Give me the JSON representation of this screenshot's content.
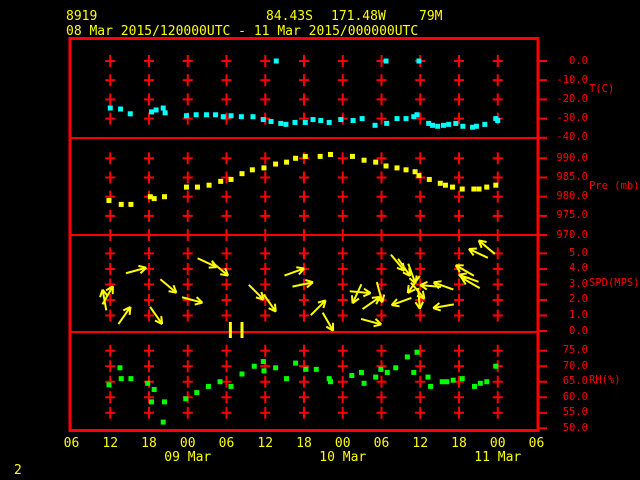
{
  "header": {
    "station_id": "8919",
    "latitude": "84.43S",
    "longitude": "171.48W",
    "elevation": "79M",
    "time_range": "08 Mar 2015/120000UTC - 11 Mar 2015/000000UTC"
  },
  "page_number": "2",
  "colors": {
    "background": "#000000",
    "grid": "#ff0000",
    "frame": "#ff0000",
    "axis_text": "#ff0000",
    "text_primary": "#ffff00",
    "temperature": "#00ffff",
    "pressure": "#ffff00",
    "wind": "#ffff00",
    "humidity": "#00ff00"
  },
  "chart_data": {
    "type": "scatter",
    "description": "Four stacked meteorological time-series panels: temperature, station pressure, wind vectors, relative humidity",
    "x_axis": {
      "span_hours": 72,
      "tick_step_hours": 6,
      "tick_labels": [
        "06",
        "12",
        "18",
        "00",
        "06",
        "12",
        "18",
        "00",
        "06",
        "12",
        "18",
        "00",
        "06"
      ],
      "date_labels": [
        {
          "label": "09 Mar",
          "h": 18
        },
        {
          "label": "10 Mar",
          "h": 42
        },
        {
          "label": "11 Mar",
          "h": 66
        }
      ]
    },
    "panels": [
      {
        "id": "temperature",
        "axis_label": "T(C)",
        "unit": "C",
        "color": "#00ffff",
        "yticks": [
          0,
          -10,
          -20,
          -30,
          -40
        ],
        "grid_rows": [
          0,
          -10,
          -20,
          -30
        ],
        "points": [
          [
            6,
            -24.5
          ],
          [
            7.6,
            -25
          ],
          [
            9.1,
            -27.5
          ],
          [
            12.4,
            -26.5
          ],
          [
            13.1,
            -25.5
          ],
          [
            14.2,
            -24.5
          ],
          [
            14.5,
            -27
          ],
          [
            17.8,
            -28.5
          ],
          [
            19.3,
            -28
          ],
          [
            20.9,
            -28
          ],
          [
            22.3,
            -28
          ],
          [
            23.5,
            -29
          ],
          [
            24.7,
            -28.5
          ],
          [
            26.3,
            -29
          ],
          [
            28.1,
            -29
          ],
          [
            29.7,
            -30.5
          ],
          [
            30.9,
            -31.5
          ],
          [
            31.7,
            0
          ],
          [
            32.4,
            -32.5
          ],
          [
            33.2,
            -33
          ],
          [
            34.6,
            -32
          ],
          [
            36.2,
            -32
          ],
          [
            37.4,
            -30.5
          ],
          [
            38.6,
            -31
          ],
          [
            39.9,
            -32
          ],
          [
            41.7,
            -30.5
          ],
          [
            43.6,
            -31
          ],
          [
            45,
            -30
          ],
          [
            47,
            -33.5
          ],
          [
            48.7,
            0
          ],
          [
            48.8,
            -32.5
          ],
          [
            50.4,
            -30
          ],
          [
            51.8,
            -30
          ],
          [
            53,
            -29
          ],
          [
            53.5,
            -28
          ],
          [
            53.8,
            0
          ],
          [
            55.3,
            -32.5
          ],
          [
            55.9,
            -33.5
          ],
          [
            56.7,
            -34
          ],
          [
            57.6,
            -33.5
          ],
          [
            58.4,
            -33
          ],
          [
            59.5,
            -32.5
          ],
          [
            60.6,
            -34
          ],
          [
            62.1,
            -34.5
          ],
          [
            62.7,
            -34
          ],
          [
            64,
            -33
          ],
          [
            65.7,
            -30
          ],
          [
            66,
            -31
          ]
        ]
      },
      {
        "id": "pressure",
        "axis_label": "Pre (mb)",
        "unit": "mb",
        "color": "#ffff00",
        "yticks": [
          990,
          985,
          980,
          975,
          970
        ],
        "grid_rows": [
          990,
          985,
          980,
          975,
          970
        ],
        "points": [
          [
            5.8,
            979
          ],
          [
            7.7,
            978
          ],
          [
            9.2,
            978
          ],
          [
            12.2,
            980
          ],
          [
            12.8,
            979.5
          ],
          [
            14.4,
            980
          ],
          [
            17.8,
            982.5
          ],
          [
            19.5,
            982.5
          ],
          [
            21.3,
            983
          ],
          [
            23.1,
            984
          ],
          [
            24.7,
            984.5
          ],
          [
            26.4,
            986
          ],
          [
            28,
            987
          ],
          [
            29.8,
            987.5
          ],
          [
            31.6,
            988.5
          ],
          [
            33.3,
            989
          ],
          [
            34.7,
            990
          ],
          [
            36.2,
            990.5
          ],
          [
            38.5,
            990.5
          ],
          [
            40.1,
            991
          ],
          [
            43.5,
            990.5
          ],
          [
            45.3,
            989.5
          ],
          [
            47.1,
            989
          ],
          [
            48.7,
            988
          ],
          [
            50.4,
            987.5
          ],
          [
            51.8,
            987
          ],
          [
            53.2,
            986.5
          ],
          [
            53.8,
            985.5
          ],
          [
            55.4,
            984.5
          ],
          [
            57.1,
            983.5
          ],
          [
            57.9,
            983
          ],
          [
            59,
            982.5
          ],
          [
            60.5,
            982
          ],
          [
            62.3,
            982
          ],
          [
            63.1,
            982
          ],
          [
            64.3,
            982.5
          ],
          [
            65.7,
            983
          ]
        ]
      },
      {
        "id": "wind_speed",
        "axis_label": "SPD(MPS)",
        "unit": "MPS",
        "color": "#ffff00",
        "yticks": [
          5,
          4,
          3,
          2,
          1,
          0
        ],
        "grid_rows": [
          5,
          4,
          3,
          2,
          1
        ],
        "vector_format": "[hours, speed_mps, direction_deg (0=right/east, CCW positive)]",
        "vectors": [
          [
            5.1,
            2,
            100
          ],
          [
            5.6,
            2.3,
            60
          ],
          [
            8.2,
            1,
            55
          ],
          [
            10,
            3.9,
            15
          ],
          [
            13.1,
            1,
            -55
          ],
          [
            15,
            2.9,
            -40
          ],
          [
            18.7,
            2,
            -15
          ],
          [
            21,
            4.4,
            -25
          ],
          [
            23,
            4,
            -40
          ],
          [
            28.6,
            2.5,
            -45
          ],
          [
            30.7,
            1.8,
            -55
          ],
          [
            34.5,
            3.8,
            20
          ],
          [
            35.8,
            3,
            12
          ],
          [
            38.2,
            1.5,
            45
          ],
          [
            39.7,
            0.6,
            -60
          ],
          [
            44.2,
            2.4,
            -115
          ],
          [
            44.7,
            2.5,
            -5
          ],
          [
            46.4,
            1.8,
            35
          ],
          [
            46.4,
            0.6,
            -15
          ],
          [
            47.7,
            2.5,
            -75
          ],
          [
            50.5,
            4.4,
            -50
          ],
          [
            51.1,
            1.9,
            200
          ],
          [
            51.5,
            4.1,
            -55
          ],
          [
            52.7,
            3.7,
            -70
          ],
          [
            53,
            3,
            -125
          ],
          [
            53.6,
            2.6,
            -50
          ],
          [
            53.8,
            2.1,
            -85
          ],
          [
            55.6,
            2.9,
            175
          ],
          [
            57.6,
            1.6,
            190
          ],
          [
            57.6,
            2.9,
            160
          ],
          [
            60.9,
            3.9,
            150
          ],
          [
            61.5,
            3.4,
            160
          ],
          [
            61.8,
            3.1,
            150
          ],
          [
            63,
            5,
            155
          ],
          [
            64.3,
            5.4,
            140
          ]
        ],
        "calm_marks_h": [
          24.6,
          26.4
        ]
      },
      {
        "id": "relative_humidity",
        "axis_label": "RH(%)",
        "unit": "%",
        "color": "#00ff00",
        "yticks": [
          75,
          70,
          65,
          60,
          55,
          50
        ],
        "grid_rows": [
          75,
          70,
          65,
          60,
          55
        ],
        "points": [
          [
            5.8,
            64
          ],
          [
            7.5,
            69.5
          ],
          [
            7.7,
            66
          ],
          [
            9.2,
            66
          ],
          [
            11.8,
            64.5
          ],
          [
            12.4,
            58.5
          ],
          [
            12.8,
            62.5
          ],
          [
            14.2,
            52
          ],
          [
            14.4,
            58.5
          ],
          [
            17.7,
            59.5
          ],
          [
            19.4,
            61.5
          ],
          [
            21.2,
            63.5
          ],
          [
            23,
            65
          ],
          [
            24.7,
            63.5
          ],
          [
            26.4,
            67.5
          ],
          [
            28.3,
            70
          ],
          [
            29.7,
            71.5
          ],
          [
            29.8,
            68.5
          ],
          [
            31.6,
            69.5
          ],
          [
            33.3,
            66
          ],
          [
            34.7,
            71
          ],
          [
            36.3,
            69
          ],
          [
            37.9,
            69
          ],
          [
            39.9,
            66
          ],
          [
            40.1,
            65
          ],
          [
            43.4,
            67
          ],
          [
            44.9,
            68
          ],
          [
            45.3,
            64.5
          ],
          [
            47.1,
            66.5
          ],
          [
            47.9,
            69
          ],
          [
            48.9,
            68
          ],
          [
            50.2,
            69.5
          ],
          [
            52,
            73
          ],
          [
            53,
            68
          ],
          [
            53.5,
            74.5
          ],
          [
            55.2,
            66.5
          ],
          [
            55.6,
            63.5
          ],
          [
            57.4,
            65
          ],
          [
            58.1,
            65
          ],
          [
            59.1,
            65.5
          ],
          [
            60.5,
            66
          ],
          [
            62.4,
            63.5
          ],
          [
            63.3,
            64.5
          ],
          [
            64.3,
            65
          ],
          [
            65.7,
            70
          ]
        ]
      }
    ]
  }
}
